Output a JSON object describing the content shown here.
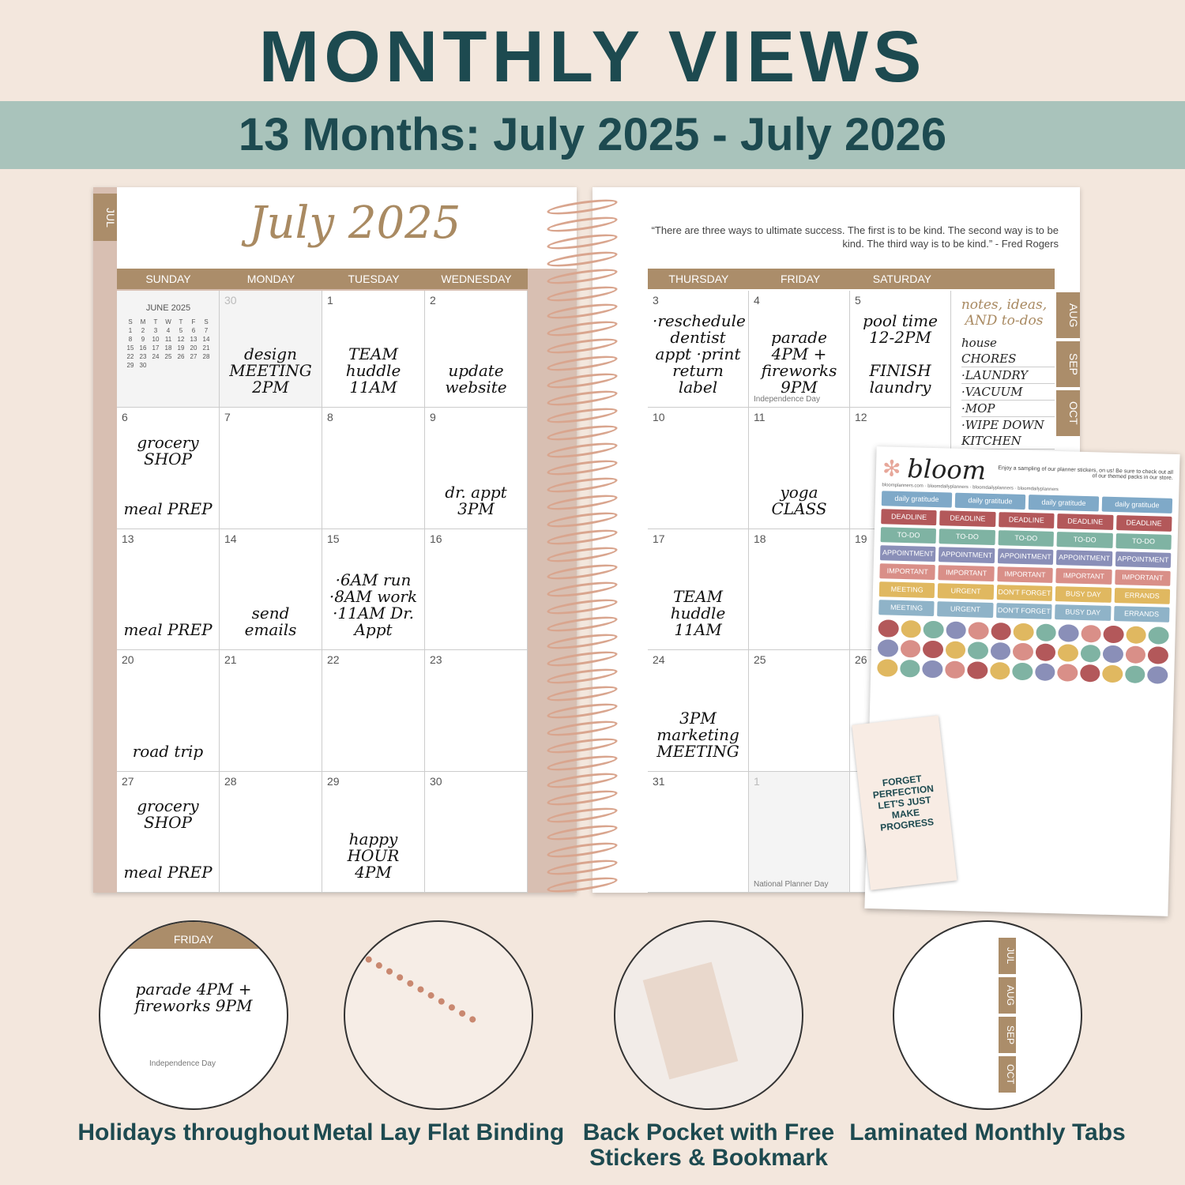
{
  "header": {
    "title": "MONTHLY VIEWS",
    "subtitle": "13 Months: July 2025 - July 2026"
  },
  "planner": {
    "month_title": "July 2025",
    "side_tab": "JUL",
    "quote": "“There are three ways to ultimate success. The first is to be kind. The second way is to be kind. The third way is to be kind.” - Fred Rogers",
    "left_days": [
      "SUNDAY",
      "MONDAY",
      "TUESDAY",
      "WEDNESDAY"
    ],
    "right_days": [
      "THURSDAY",
      "FRIDAY",
      "SATURDAY"
    ],
    "mini_cal": {
      "title": "JUNE 2025",
      "heads": [
        "S",
        "M",
        "T",
        "W",
        "T",
        "F",
        "S"
      ],
      "rows": [
        [
          "1",
          "2",
          "3",
          "4",
          "5",
          "6",
          "7"
        ],
        [
          "8",
          "9",
          "10",
          "11",
          "12",
          "13",
          "14"
        ],
        [
          "15",
          "16",
          "17",
          "18",
          "19",
          "20",
          "21"
        ],
        [
          "22",
          "23",
          "24",
          "25",
          "26",
          "27",
          "28"
        ],
        [
          "29",
          "30",
          "",
          "",
          "",
          "",
          ""
        ]
      ]
    },
    "left_cells": [
      {
        "n": "",
        "note": ""
      },
      {
        "n": "30",
        "note": "design MEETING 2PM",
        "dim": true
      },
      {
        "n": "1",
        "note": "TEAM huddle 11AM"
      },
      {
        "n": "2",
        "note": "update website"
      },
      {
        "n": "6",
        "note": "grocery SHOP\n\n\nmeal PREP"
      },
      {
        "n": "7",
        "note": ""
      },
      {
        "n": "8",
        "note": ""
      },
      {
        "n": "9",
        "note": "dr. appt 3PM"
      },
      {
        "n": "13",
        "note": "meal PREP"
      },
      {
        "n": "14",
        "note": "send emails"
      },
      {
        "n": "15",
        "note": "·6AM run ·8AM work ·11AM Dr. Appt"
      },
      {
        "n": "16",
        "note": ""
      },
      {
        "n": "20",
        "note": "road trip"
      },
      {
        "n": "21",
        "note": ""
      },
      {
        "n": "22",
        "note": ""
      },
      {
        "n": "23",
        "note": ""
      },
      {
        "n": "27",
        "note": "grocery SHOP\n\n\nmeal PREP"
      },
      {
        "n": "28",
        "note": ""
      },
      {
        "n": "29",
        "note": "happy HOUR 4PM"
      },
      {
        "n": "30",
        "note": ""
      }
    ],
    "right_cells": [
      {
        "n": "3",
        "note": "·reschedule dentist appt ·print return label"
      },
      {
        "n": "4",
        "note": "parade 4PM + fireworks 9PM",
        "holiday": "Independence Day"
      },
      {
        "n": "5",
        "note": "pool time 12-2PM\n\nFINISH laundry"
      },
      {
        "n": "10",
        "note": ""
      },
      {
        "n": "11",
        "note": "yoga CLASS"
      },
      {
        "n": "12",
        "note": ""
      },
      {
        "n": "17",
        "note": "TEAM huddle 11AM"
      },
      {
        "n": "18",
        "note": ""
      },
      {
        "n": "19",
        "note": ""
      },
      {
        "n": "24",
        "note": "3PM marketing MEETING"
      },
      {
        "n": "25",
        "note": ""
      },
      {
        "n": "26",
        "note": ""
      },
      {
        "n": "31",
        "note": ""
      },
      {
        "n": "1",
        "note": "",
        "holiday": "National Planner Day",
        "dim": true
      },
      {
        "n": "",
        "note": ""
      }
    ],
    "notes_title": "notes, ideas, AND to-dos",
    "notes": [
      "house CHORES",
      "·LAUNDRY",
      "·VACUUM",
      "·MOP",
      "·WIPE DOWN KITCHEN"
    ],
    "right_tabs": [
      "AUG",
      "SEP",
      "OCT"
    ]
  },
  "stickers": {
    "brand": "bloom",
    "blurb": "Enjoy a sampling of our planner stickers, on us! Be sure to check out all of our themed packs in our store.",
    "links": "bloomplanners.com · bloomdailyplanners · bloomdailyplanners · bloomdailyplanners",
    "rows": [
      [
        "daily gratitude",
        "daily gratitude",
        "daily gratitude",
        "daily gratitude"
      ],
      [
        "DEADLINE",
        "DEADLINE",
        "DEADLINE",
        "DEADLINE",
        "DEADLINE"
      ],
      [
        "TO-DO",
        "TO-DO",
        "TO-DO",
        "TO-DO",
        "TO-DO"
      ],
      [
        "APPOINTMENT",
        "APPOINTMENT",
        "APPOINTMENT",
        "APPOINTMENT",
        "APPOINTMENT"
      ],
      [
        "IMPORTANT",
        "IMPORTANT",
        "IMPORTANT",
        "IMPORTANT",
        "IMPORTANT"
      ],
      [
        "MEETING",
        "URGENT",
        "DON'T FORGET",
        "BUSY DAY",
        "ERRANDS"
      ],
      [
        "MEETING",
        "URGENT",
        "DON'T FORGET",
        "BUSY DAY",
        "ERRANDS"
      ]
    ],
    "row_colors": [
      "#7fa9c8",
      "#b3585a",
      "#7fb3a3",
      "#8a8fb8",
      "#d98f88",
      "#e0b860",
      "#8fb3c8"
    ],
    "bookmark": "FORGET PERFECTION LET'S JUST MAKE PROGRESS"
  },
  "features": [
    {
      "label": "Holidays throughout",
      "detail_day": "FRIDAY",
      "detail_note": "parade 4PM + fireworks 9PM",
      "detail_holiday": "Independence Day"
    },
    {
      "label": "Metal Lay Flat Binding"
    },
    {
      "label": "Back Pocket with Free Stickers & Bookmark"
    },
    {
      "label": "Laminated Monthly Tabs",
      "tabs": [
        "JUL",
        "AUG",
        "SEP",
        "OCT"
      ]
    }
  ],
  "colors": {
    "accent": "#ab8d6a",
    "title": "#1d4a50",
    "band": "#a9c3bb",
    "coil": "#d9a58e"
  }
}
